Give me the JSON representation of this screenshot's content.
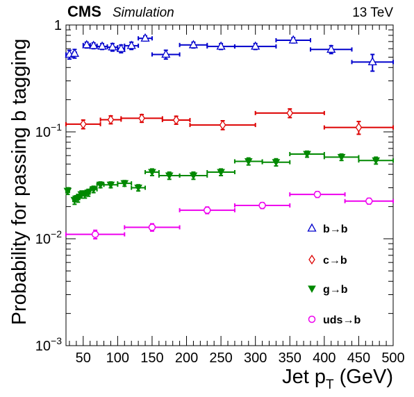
{
  "header": {
    "experiment": "CMS",
    "tag": "Simulation",
    "energy": "13 TeV"
  },
  "chart_data": {
    "type": "scatter",
    "xlabel_main": "Jet p",
    "xlabel_sub": "T",
    "xlabel_unit": " (GeV)",
    "ylabel": "Probability for passing b tagging",
    "xlim": [
      25,
      500
    ],
    "ylim": [
      0.001,
      1
    ],
    "yscale": "log",
    "x_ticks": [
      50,
      100,
      150,
      200,
      250,
      300,
      350,
      400,
      450,
      500
    ],
    "x_tick_labels": [
      "50",
      "100",
      "150",
      "200",
      "250",
      "300",
      "350",
      "400",
      "450",
      "500"
    ],
    "y_tick_labels": [
      {
        "value": 1,
        "base": "1",
        "exp": ""
      },
      {
        "value": 0.1,
        "base": "10",
        "exp": "−1"
      },
      {
        "value": 0.01,
        "base": "10",
        "exp": "−2"
      },
      {
        "value": 0.001,
        "base": "10",
        "exp": "−3"
      }
    ],
    "legend_position": "right",
    "series": [
      {
        "name": "b→b",
        "marker": "open-triangle",
        "color": "#0000cc",
        "points": [
          {
            "xlo": 25,
            "xhi": 35,
            "y": 0.53,
            "err": 0.05
          },
          {
            "xlo": 35,
            "xhi": 40,
            "y": 0.54,
            "err": 0.05
          },
          {
            "xlo": 50,
            "xhi": 60,
            "y": 0.65,
            "err": 0.04
          },
          {
            "xlo": 60,
            "xhi": 70,
            "y": 0.64,
            "err": 0.04
          },
          {
            "xlo": 70,
            "xhi": 85,
            "y": 0.63,
            "err": 0.04
          },
          {
            "xlo": 85,
            "xhi": 100,
            "y": 0.62,
            "err": 0.05
          },
          {
            "xlo": 100,
            "xhi": 110,
            "y": 0.6,
            "err": 0.05
          },
          {
            "xlo": 110,
            "xhi": 130,
            "y": 0.64,
            "err": 0.05
          },
          {
            "xlo": 130,
            "xhi": 150,
            "y": 0.75,
            "err": 0.04
          },
          {
            "xlo": 150,
            "xhi": 190,
            "y": 0.53,
            "err": 0.05
          },
          {
            "xlo": 190,
            "xhi": 230,
            "y": 0.65,
            "err": 0.04
          },
          {
            "xlo": 230,
            "xhi": 270,
            "y": 0.63,
            "err": 0.04
          },
          {
            "xlo": 270,
            "xhi": 330,
            "y": 0.63,
            "err": 0.04
          },
          {
            "xlo": 330,
            "xhi": 380,
            "y": 0.72,
            "err": 0.04
          },
          {
            "xlo": 380,
            "xhi": 440,
            "y": 0.59,
            "err": 0.05
          },
          {
            "xlo": 440,
            "xhi": 500,
            "y": 0.45,
            "err": 0.08
          }
        ]
      },
      {
        "name": "c→b",
        "marker": "open-diamond",
        "color": "#dd0000",
        "points": [
          {
            "xlo": 25,
            "xhi": 75,
            "y": 0.118,
            "err": 0.011
          },
          {
            "xlo": 75,
            "xhi": 105,
            "y": 0.13,
            "err": 0.011
          },
          {
            "xlo": 105,
            "xhi": 165,
            "y": 0.134,
            "err": 0.011
          },
          {
            "xlo": 165,
            "xhi": 205,
            "y": 0.129,
            "err": 0.011
          },
          {
            "xlo": 205,
            "xhi": 300,
            "y": 0.116,
            "err": 0.011
          },
          {
            "xlo": 300,
            "xhi": 400,
            "y": 0.15,
            "err": 0.014
          },
          {
            "xlo": 400,
            "xhi": 500,
            "y": 0.11,
            "err": 0.015
          }
        ]
      },
      {
        "name": "g→b",
        "marker": "filled-inverted-triangle",
        "color": "#008800",
        "points": [
          {
            "xlo": 25,
            "xhi": 30,
            "y": 0.028,
            "err": 0.002
          },
          {
            "xlo": 35,
            "xhi": 40,
            "y": 0.023,
            "err": 0.002
          },
          {
            "xlo": 40,
            "xhi": 45,
            "y": 0.024,
            "err": 0.002
          },
          {
            "xlo": 45,
            "xhi": 50,
            "y": 0.026,
            "err": 0.002
          },
          {
            "xlo": 50,
            "xhi": 55,
            "y": 0.026,
            "err": 0.002
          },
          {
            "xlo": 55,
            "xhi": 60,
            "y": 0.027,
            "err": 0.002
          },
          {
            "xlo": 60,
            "xhi": 70,
            "y": 0.029,
            "err": 0.002
          },
          {
            "xlo": 70,
            "xhi": 80,
            "y": 0.032,
            "err": 0.002
          },
          {
            "xlo": 80,
            "xhi": 100,
            "y": 0.032,
            "err": 0.002
          },
          {
            "xlo": 100,
            "xhi": 120,
            "y": 0.033,
            "err": 0.002
          },
          {
            "xlo": 120,
            "xhi": 140,
            "y": 0.03,
            "err": 0.002
          },
          {
            "xlo": 140,
            "xhi": 160,
            "y": 0.042,
            "err": 0.003
          },
          {
            "xlo": 160,
            "xhi": 190,
            "y": 0.039,
            "err": 0.003
          },
          {
            "xlo": 190,
            "xhi": 230,
            "y": 0.039,
            "err": 0.003
          },
          {
            "xlo": 230,
            "xhi": 270,
            "y": 0.042,
            "err": 0.003
          },
          {
            "xlo": 270,
            "xhi": 310,
            "y": 0.053,
            "err": 0.004
          },
          {
            "xlo": 310,
            "xhi": 350,
            "y": 0.052,
            "err": 0.004
          },
          {
            "xlo": 350,
            "xhi": 400,
            "y": 0.062,
            "err": 0.004
          },
          {
            "xlo": 400,
            "xhi": 450,
            "y": 0.058,
            "err": 0.004
          },
          {
            "xlo": 450,
            "xhi": 500,
            "y": 0.054,
            "err": 0.004
          }
        ]
      },
      {
        "name": "uds→b",
        "marker": "open-circle",
        "color": "#ee00ee",
        "points": [
          {
            "xlo": 25,
            "xhi": 110,
            "y": 0.011,
            "err": 0.001
          },
          {
            "xlo": 110,
            "xhi": 190,
            "y": 0.0128,
            "err": 0.001
          },
          {
            "xlo": 190,
            "xhi": 270,
            "y": 0.0185,
            "err": 0.0013
          },
          {
            "xlo": 270,
            "xhi": 350,
            "y": 0.0205,
            "err": 0.0013
          },
          {
            "xlo": 350,
            "xhi": 430,
            "y": 0.026,
            "err": 0.0016
          },
          {
            "xlo": 430,
            "xhi": 500,
            "y": 0.0225,
            "err": 0.0014
          }
        ]
      }
    ]
  }
}
